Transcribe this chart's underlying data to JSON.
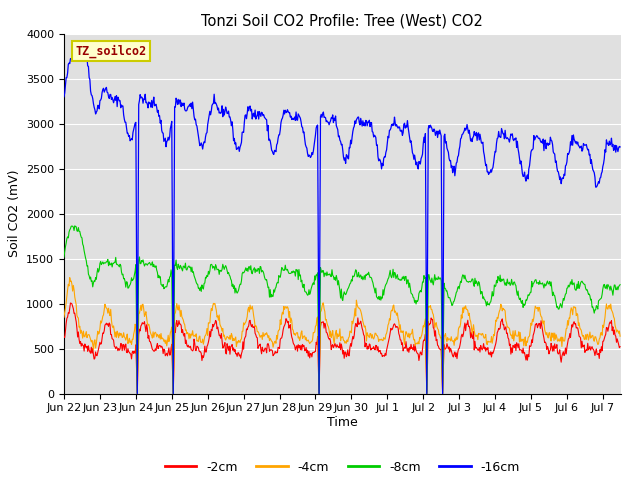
{
  "title": "Tonzi Soil CO2 Profile: Tree (West) CO2",
  "ylabel": "Soil CO2 (mV)",
  "xlabel": "Time",
  "watermark": "TZ_soilco2",
  "ylim": [
    0,
    4000
  ],
  "background_color": "#e0e0e0",
  "colors": {
    "-2cm": "#ff0000",
    "-4cm": "#ffa500",
    "-8cm": "#00cc00",
    "-16cm": "#0000ff"
  },
  "legend_labels": [
    "-2cm",
    "-4cm",
    "-8cm",
    "-16cm"
  ],
  "tick_labels": [
    "Jun 22",
    "Jun 23",
    "Jun 24",
    "Jun 25",
    "Jun 26",
    "Jun 27",
    "Jun 28",
    "Jun 29",
    "Jun 30",
    "Jul 1",
    "Jul 2",
    "Jul 3",
    "Jul 4",
    "Jul 5",
    "Jul 6",
    "Jul 7"
  ],
  "grid_color": "#ffffff",
  "spike_positions": [
    2.05,
    3.05,
    7.1,
    10.1,
    10.55
  ],
  "watermark_bg": "#ffffcc",
  "watermark_border": "#cccc00",
  "watermark_text_color": "#990000"
}
